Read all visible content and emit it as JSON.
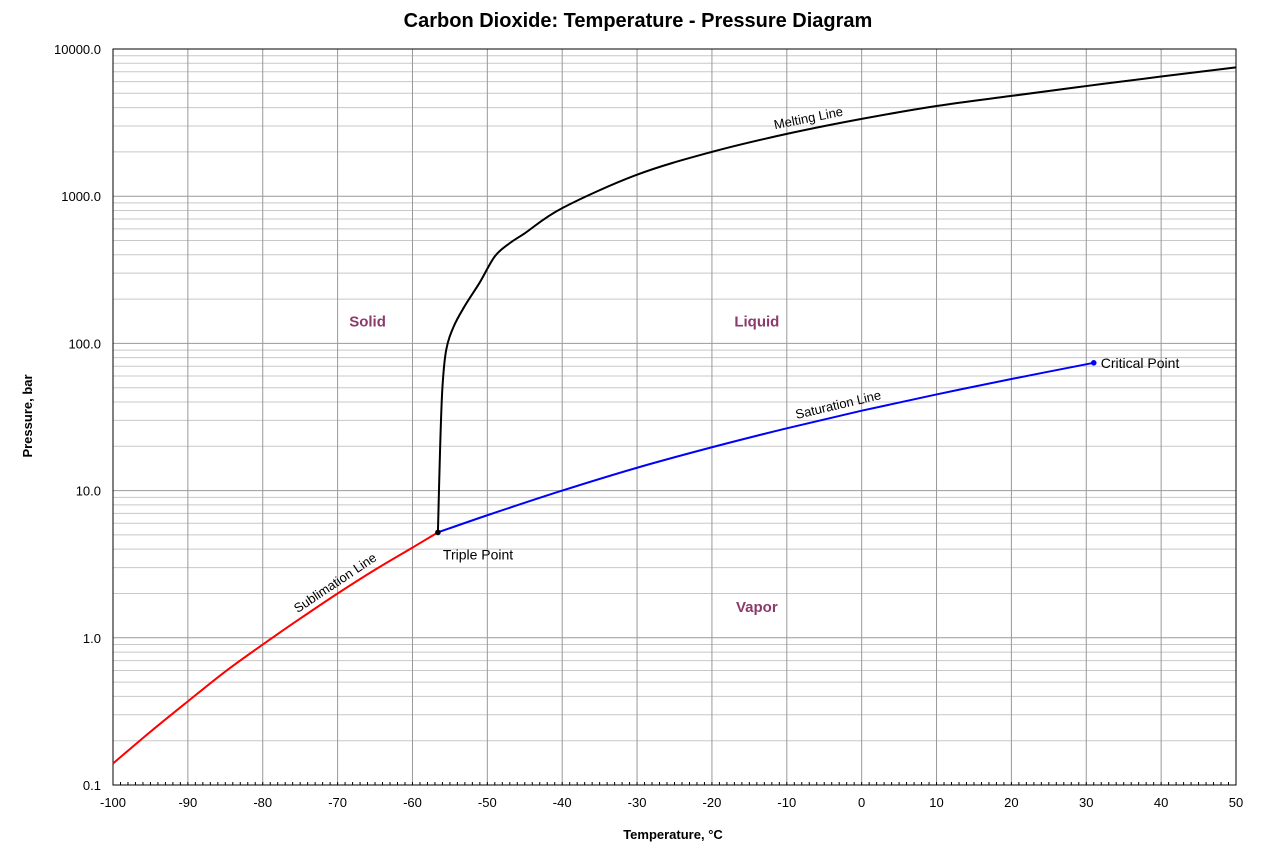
{
  "chart_data": {
    "type": "line",
    "title": "Carbon Dioxide: Temperature - Pressure Diagram",
    "xlabel": "Temperature, °C",
    "ylabel": "Pressure, bar",
    "xlim": [
      -100,
      50
    ],
    "ylim": [
      0.1,
      10000
    ],
    "yscale": "log",
    "grid": true,
    "x_ticks": [
      -100,
      -90,
      -80,
      -70,
      -60,
      -50,
      -40,
      -30,
      -20,
      -10,
      0,
      10,
      20,
      30,
      40,
      50
    ],
    "x_tick_labels": [
      "-100",
      "-90",
      "-80",
      "-70",
      "-60",
      "-50",
      "-40",
      "-30",
      "-20",
      "-10",
      "0",
      "10",
      "20",
      "30",
      "40",
      "50"
    ],
    "y_ticks": [
      0.1,
      1,
      10,
      100,
      1000,
      10000
    ],
    "y_tick_labels": [
      "0.1",
      "1.0",
      "10.0",
      "100.0",
      "1000.0",
      "10000.0"
    ],
    "colors": {
      "sublimation": "#ff0000",
      "saturation": "#0000ff",
      "melting": "#000000",
      "region_label": "#8b3a6b",
      "grid": "#999999"
    },
    "series": [
      {
        "label": "Sublimation Line",
        "color": "#ff0000",
        "x": [
          -100,
          -95,
          -90,
          -85,
          -80,
          -75,
          -70,
          -65,
          -60,
          -56.6
        ],
        "y": [
          0.14,
          0.23,
          0.37,
          0.59,
          0.9,
          1.35,
          2.0,
          2.9,
          4.1,
          5.2
        ]
      },
      {
        "label": "Saturation Line",
        "color": "#0000ff",
        "x": [
          -56.6,
          -50,
          -40,
          -30,
          -20,
          -10,
          0,
          10,
          20,
          31
        ],
        "y": [
          5.2,
          6.8,
          10.0,
          14.3,
          19.7,
          26.5,
          34.9,
          45.0,
          57.3,
          73.8
        ]
      },
      {
        "label": "Melting Line",
        "color": "#000000",
        "x": [
          -56.6,
          -56.3,
          -56.0,
          -55.5,
          -54.5,
          -53,
          -51,
          -49,
          -47,
          -45,
          -40,
          -30,
          -20,
          -10,
          0,
          10,
          20,
          30,
          40,
          50
        ],
        "y": [
          5.2,
          20,
          50,
          90,
          130,
          180,
          260,
          390,
          480,
          560,
          830,
          1400,
          2000,
          2650,
          3350,
          4100,
          4800,
          5600,
          6500,
          7500
        ]
      }
    ],
    "points": [
      {
        "label": "Triple Point",
        "x": -56.6,
        "y": 5.2,
        "color": "#000000"
      },
      {
        "label": "Critical Point",
        "x": 31,
        "y": 73.8,
        "color": "#0000ff"
      }
    ],
    "regions": [
      {
        "label": "Solid",
        "x": -66,
        "y": 130
      },
      {
        "label": "Liquid",
        "x": -14,
        "y": 130
      },
      {
        "label": "Vapor",
        "x": -14,
        "y": 1.5
      }
    ]
  }
}
